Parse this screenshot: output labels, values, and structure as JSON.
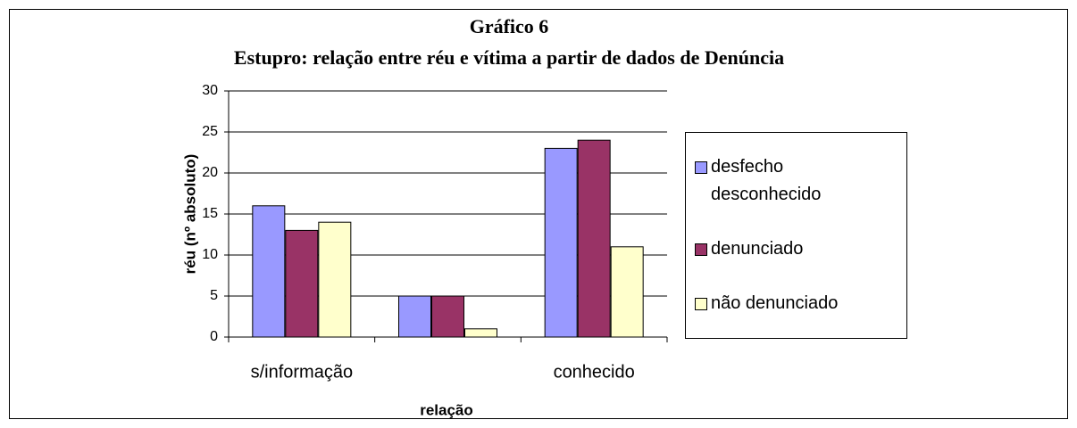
{
  "chart_data": {
    "type": "bar",
    "title": "Gráfico  6",
    "subtitle": "Estupro: relação entre réu e vítima a partir de dados de Denúncia",
    "xlabel": "relação",
    "ylabel": "réu (nº absoluto)",
    "categories": [
      "s/informação",
      null,
      "conhecido"
    ],
    "series": [
      {
        "name": "desfecho desconhecido",
        "color": "#9999ff",
        "values": [
          16,
          5,
          23
        ]
      },
      {
        "name": "denunciado",
        "color": "#993366",
        "values": [
          13,
          5,
          24
        ]
      },
      {
        "name": "não denunciado",
        "color": "#ffffcc",
        "values": [
          14,
          1,
          11
        ]
      }
    ],
    "ylim": [
      0,
      30
    ],
    "yticks": [
      0,
      5,
      10,
      15,
      20,
      25,
      30
    ],
    "grid": true,
    "legend": "right"
  }
}
